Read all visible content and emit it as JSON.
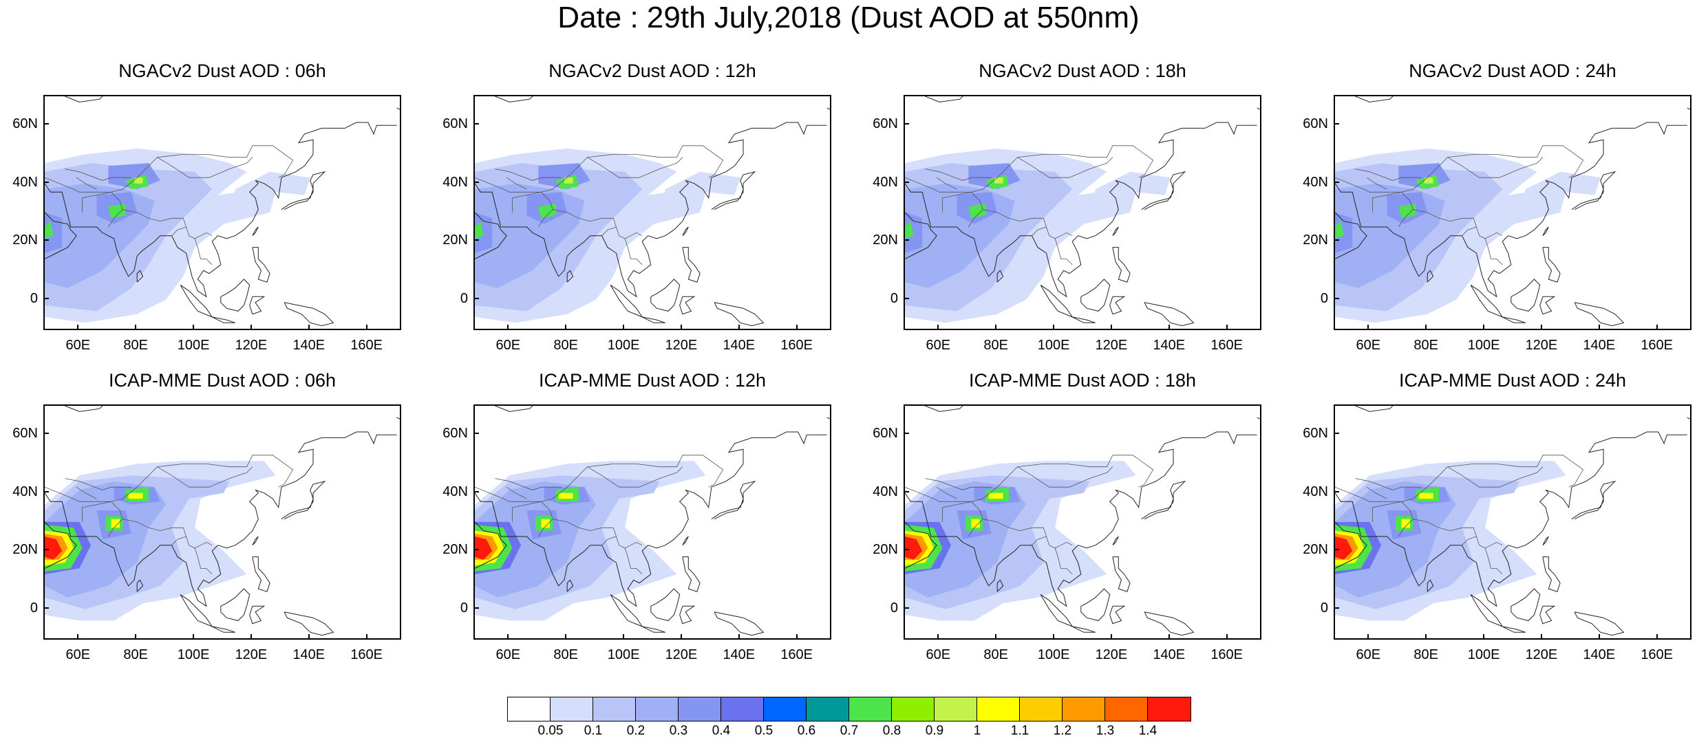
{
  "title": "Date : 29th July,2018 (Dust AOD at 550nm)",
  "panels": [
    {
      "title": "NGACv2 Dust AOD : 06h",
      "model": "NGACv2",
      "hour": "06h"
    },
    {
      "title": "NGACv2 Dust AOD : 12h",
      "model": "NGACv2",
      "hour": "12h"
    },
    {
      "title": "NGACv2 Dust AOD : 18h",
      "model": "NGACv2",
      "hour": "18h"
    },
    {
      "title": "NGACv2 Dust AOD : 24h",
      "model": "NGACv2",
      "hour": "24h"
    },
    {
      "title": "ICAP-MME Dust AOD : 06h",
      "model": "ICAP-MME",
      "hour": "06h"
    },
    {
      "title": "ICAP-MME Dust AOD : 12h",
      "model": "ICAP-MME",
      "hour": "12h"
    },
    {
      "title": "ICAP-MME Dust AOD : 18h",
      "model": "ICAP-MME",
      "hour": "18h"
    },
    {
      "title": "ICAP-MME Dust AOD : 24h",
      "model": "ICAP-MME",
      "hour": "24h"
    }
  ],
  "axes": {
    "lon_range": [
      48,
      172
    ],
    "lat_range": [
      -11,
      70
    ],
    "lon_ticks": [
      "60E",
      "80E",
      "100E",
      "120E",
      "140E",
      "160E"
    ],
    "lat_ticks": [
      "60N",
      "40N",
      "20N",
      "0"
    ]
  },
  "colorbar": {
    "labels": [
      "0.05",
      "0.1",
      "0.2",
      "0.3",
      "0.4",
      "0.5",
      "0.6",
      "0.7",
      "0.8",
      "0.9",
      "1",
      "1.1",
      "1.2",
      "1.3",
      "1.4"
    ],
    "colors": [
      "#ffffff",
      "#d5defb",
      "#b8c5f6",
      "#9fb1f4",
      "#8596f2",
      "#6b72ef",
      "#0066ff",
      "#009999",
      "#4ce44a",
      "#8fef00",
      "#c3f34a",
      "#ffff00",
      "#ffcc00",
      "#ff9900",
      "#ff6600",
      "#ff1a0d"
    ]
  }
}
